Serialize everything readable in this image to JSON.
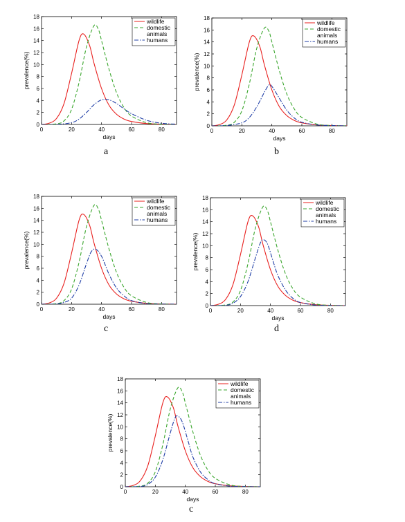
{
  "colors": {
    "wildlife": "#e8201e",
    "domestic": "#3aa62d",
    "humans": "#1f3ea6"
  },
  "panels": [
    {
      "letter": "a"
    },
    {
      "letter": "b"
    },
    {
      "letter": "c"
    },
    {
      "letter": "d"
    },
    {
      "letter": "c"
    }
  ],
  "chart_data": [
    {
      "type": "line",
      "panel": "a",
      "xlabel": "days",
      "ylabel": "prevalence(%)",
      "xlim": [
        0,
        90
      ],
      "ylim": [
        0,
        18
      ],
      "xticks": [
        0,
        20,
        40,
        60,
        80
      ],
      "yticks": [
        0,
        2,
        4,
        6,
        8,
        10,
        12,
        14,
        16,
        18
      ],
      "legend": "top-right",
      "grid": false,
      "legend_entries": [
        "wildlife",
        "domestic",
        "animals",
        "humans"
      ],
      "series": [
        {
          "name": "wildlife",
          "style": "solid",
          "x": [
            0,
            5,
            10,
            15,
            20,
            25,
            28,
            32,
            35,
            40,
            45,
            50,
            55,
            60,
            70,
            80,
            90
          ],
          "y": [
            0,
            0.2,
            1.0,
            3.5,
            8.5,
            14,
            15.1,
            13.2,
            10.2,
            6.0,
            3.2,
            1.7,
            0.9,
            0.5,
            0.15,
            0.05,
            0
          ]
        },
        {
          "name": "domestic animals",
          "style": "dashed",
          "x": [
            0,
            10,
            15,
            20,
            25,
            30,
            35,
            38,
            40,
            45,
            50,
            55,
            60,
            70,
            80,
            90
          ],
          "y": [
            0,
            0.1,
            0.6,
            2.5,
            7.0,
            13.0,
            16.5,
            15.8,
            14.0,
            9.2,
            5.3,
            2.8,
            1.4,
            0.3,
            0.05,
            0
          ]
        },
        {
          "name": "humans",
          "style": "dashdot",
          "x": [
            0,
            10,
            20,
            25,
            30,
            35,
            40,
            45,
            50,
            55,
            60,
            70,
            80,
            90
          ],
          "y": [
            0,
            0,
            0.3,
            0.9,
            2.0,
            3.3,
            4.1,
            4.1,
            3.5,
            2.6,
            1.8,
            0.7,
            0.2,
            0.05
          ]
        }
      ]
    },
    {
      "type": "line",
      "panel": "b",
      "xlabel": "days",
      "ylabel": "prevalence(%)",
      "xlim": [
        0,
        90
      ],
      "ylim": [
        0,
        18
      ],
      "xticks": [
        0,
        20,
        40,
        60,
        80
      ],
      "yticks": [
        0,
        2,
        4,
        6,
        8,
        10,
        12,
        14,
        16,
        18
      ],
      "legend": "top-right",
      "grid": false,
      "legend_entries": [
        "wildlife",
        "domestic",
        "animals",
        "humans"
      ],
      "series": [
        {
          "name": "wildlife",
          "style": "solid",
          "x": [
            0,
            5,
            10,
            15,
            20,
            25,
            28,
            32,
            35,
            40,
            45,
            50,
            55,
            60,
            70,
            80,
            90
          ],
          "y": [
            0,
            0.2,
            1.0,
            3.5,
            8.5,
            14,
            15.0,
            13.2,
            10.2,
            6.0,
            3.2,
            1.7,
            0.9,
            0.5,
            0.15,
            0.05,
            0
          ]
        },
        {
          "name": "domestic animals",
          "style": "dashed",
          "x": [
            0,
            10,
            15,
            20,
            25,
            30,
            35,
            38,
            40,
            45,
            50,
            55,
            60,
            70,
            80,
            90
          ],
          "y": [
            0,
            0.1,
            0.6,
            2.5,
            7.0,
            13.0,
            16.3,
            15.8,
            14.0,
            9.2,
            5.3,
            2.8,
            1.4,
            0.3,
            0.05,
            0
          ]
        },
        {
          "name": "humans",
          "style": "dashdot",
          "x": [
            0,
            10,
            20,
            25,
            30,
            35,
            38,
            40,
            45,
            50,
            55,
            60,
            70,
            80,
            90
          ],
          "y": [
            0,
            0.05,
            0.5,
            1.4,
            3.2,
            5.6,
            6.8,
            6.6,
            4.6,
            2.6,
            1.3,
            0.6,
            0.15,
            0.05,
            0
          ]
        }
      ]
    },
    {
      "type": "line",
      "panel": "c",
      "xlabel": "days",
      "ylabel": "prevalence(%)",
      "xlim": [
        0,
        90
      ],
      "ylim": [
        0,
        18
      ],
      "xticks": [
        0,
        20,
        40,
        60,
        80
      ],
      "yticks": [
        0,
        2,
        4,
        6,
        8,
        10,
        12,
        14,
        16,
        18
      ],
      "legend": "top-right",
      "grid": false,
      "legend_entries": [
        "wildlife",
        "domestic",
        "animals",
        "humans"
      ],
      "series": [
        {
          "name": "wildlife",
          "style": "solid",
          "x": [
            0,
            5,
            10,
            15,
            20,
            25,
            28,
            32,
            35,
            40,
            45,
            50,
            55,
            60,
            70,
            80,
            90
          ],
          "y": [
            0,
            0.2,
            1.0,
            3.5,
            8.5,
            14,
            15.0,
            13.2,
            10.2,
            6.0,
            3.2,
            1.7,
            0.9,
            0.5,
            0.15,
            0.05,
            0
          ]
        },
        {
          "name": "domestic animals",
          "style": "dashed",
          "x": [
            0,
            10,
            15,
            20,
            25,
            30,
            35,
            38,
            40,
            45,
            50,
            55,
            60,
            70,
            80,
            90
          ],
          "y": [
            0,
            0.1,
            0.6,
            2.5,
            7.0,
            13.0,
            16.5,
            15.8,
            14.0,
            9.2,
            5.3,
            2.8,
            1.4,
            0.3,
            0.05,
            0
          ]
        },
        {
          "name": "humans",
          "style": "dashdot",
          "x": [
            0,
            10,
            15,
            20,
            25,
            30,
            33,
            36,
            40,
            45,
            50,
            55,
            60,
            70,
            80,
            90
          ],
          "y": [
            0,
            0.05,
            0.3,
            1.0,
            3.2,
            6.8,
            8.7,
            9.2,
            8.0,
            5.0,
            2.7,
            1.4,
            0.6,
            0.1,
            0.02,
            0
          ]
        }
      ]
    },
    {
      "type": "line",
      "panel": "d",
      "xlabel": "days",
      "ylabel": "prevalence(%)",
      "xlim": [
        0,
        90
      ],
      "ylim": [
        0,
        18
      ],
      "xticks": [
        0,
        20,
        40,
        60,
        80
      ],
      "yticks": [
        0,
        2,
        4,
        6,
        8,
        10,
        12,
        14,
        16,
        18
      ],
      "legend": "top-right",
      "grid": false,
      "legend_entries": [
        "wildlife",
        "domestic",
        "animals",
        "humans"
      ],
      "series": [
        {
          "name": "wildlife",
          "style": "solid",
          "x": [
            0,
            5,
            10,
            15,
            20,
            25,
            28,
            32,
            35,
            40,
            45,
            50,
            55,
            60,
            70,
            80,
            90
          ],
          "y": [
            0,
            0.2,
            1.0,
            3.5,
            8.5,
            14,
            15.0,
            13.2,
            10.2,
            6.0,
            3.2,
            1.7,
            0.9,
            0.5,
            0.15,
            0.05,
            0
          ]
        },
        {
          "name": "domestic animals",
          "style": "dashed",
          "x": [
            0,
            10,
            15,
            20,
            25,
            30,
            35,
            38,
            40,
            45,
            50,
            55,
            60,
            70,
            80,
            90
          ],
          "y": [
            0,
            0.1,
            0.6,
            2.5,
            7.0,
            13.0,
            16.5,
            15.8,
            14.0,
            9.2,
            5.3,
            2.8,
            1.4,
            0.3,
            0.05,
            0
          ]
        },
        {
          "name": "humans",
          "style": "dashdot",
          "x": [
            0,
            10,
            15,
            20,
            25,
            30,
            33,
            35,
            38,
            42,
            45,
            50,
            55,
            60,
            70,
            80,
            90
          ],
          "y": [
            0,
            0.05,
            0.4,
            1.5,
            4.0,
            8.0,
            10.3,
            11.0,
            10.3,
            7.2,
            5.0,
            2.6,
            1.2,
            0.5,
            0.1,
            0.02,
            0
          ]
        }
      ]
    },
    {
      "type": "line",
      "panel": "c",
      "xlabel": "days",
      "ylabel": "prevalence(%)",
      "xlim": [
        0,
        90
      ],
      "ylim": [
        0,
        18
      ],
      "xticks": [
        0,
        20,
        40,
        60,
        80
      ],
      "yticks": [
        0,
        2,
        4,
        6,
        8,
        10,
        12,
        14,
        16,
        18
      ],
      "legend": "top-right",
      "grid": false,
      "legend_entries": [
        "wildlife",
        "domestic",
        "animals",
        "humans"
      ],
      "series": [
        {
          "name": "wildlife",
          "style": "solid",
          "x": [
            0,
            5,
            10,
            15,
            20,
            25,
            28,
            32,
            35,
            40,
            45,
            50,
            55,
            60,
            70,
            80,
            90
          ],
          "y": [
            0,
            0.2,
            1.0,
            3.5,
            8.5,
            14,
            15.0,
            13.2,
            10.2,
            6.0,
            3.2,
            1.7,
            0.9,
            0.5,
            0.15,
            0.05,
            0
          ]
        },
        {
          "name": "domestic animals",
          "style": "dashed",
          "x": [
            0,
            10,
            15,
            20,
            25,
            30,
            35,
            38,
            40,
            45,
            50,
            55,
            60,
            70,
            80,
            90
          ],
          "y": [
            0,
            0.1,
            0.6,
            2.5,
            7.0,
            13.0,
            16.5,
            15.8,
            14.0,
            9.2,
            5.3,
            2.8,
            1.4,
            0.3,
            0.05,
            0
          ]
        },
        {
          "name": "humans",
          "style": "dashdot",
          "x": [
            0,
            10,
            15,
            20,
            25,
            30,
            33,
            35,
            38,
            42,
            45,
            50,
            55,
            60,
            70,
            80,
            90
          ],
          "y": [
            0,
            0.05,
            0.4,
            1.6,
            4.5,
            9.0,
            11.4,
            11.8,
            10.8,
            7.5,
            5.0,
            2.5,
            1.2,
            0.5,
            0.1,
            0.02,
            0
          ]
        }
      ]
    }
  ]
}
